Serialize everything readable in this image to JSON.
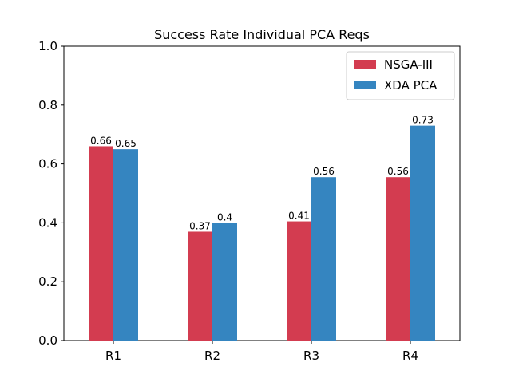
{
  "chart_data": {
    "type": "bar",
    "title": "Success Rate Individual PCA Reqs",
    "xlabel": "",
    "ylabel": "",
    "categories": [
      "R1",
      "R2",
      "R3",
      "R4"
    ],
    "series": [
      {
        "name": "NSGA-III",
        "color": "#d33c50",
        "values": [
          0.66,
          0.37,
          0.405,
          0.555
        ],
        "labels": [
          "0.66",
          "0.37",
          "0.41",
          "0.56"
        ]
      },
      {
        "name": "XDA PCA",
        "color": "#3585c0",
        "values": [
          0.65,
          0.4,
          0.555,
          0.73
        ],
        "labels": [
          "0.65",
          "0.4",
          "0.56",
          "0.73"
        ]
      }
    ],
    "ylim": [
      0,
      1.0
    ],
    "yticks": [
      0,
      0.2,
      0.4,
      0.6,
      0.8,
      1.0
    ],
    "ytick_labels": [
      "0.0",
      "0.2",
      "0.4",
      "0.6",
      "0.8",
      "1.0"
    ],
    "legend_position": "top-right",
    "grid": false
  }
}
